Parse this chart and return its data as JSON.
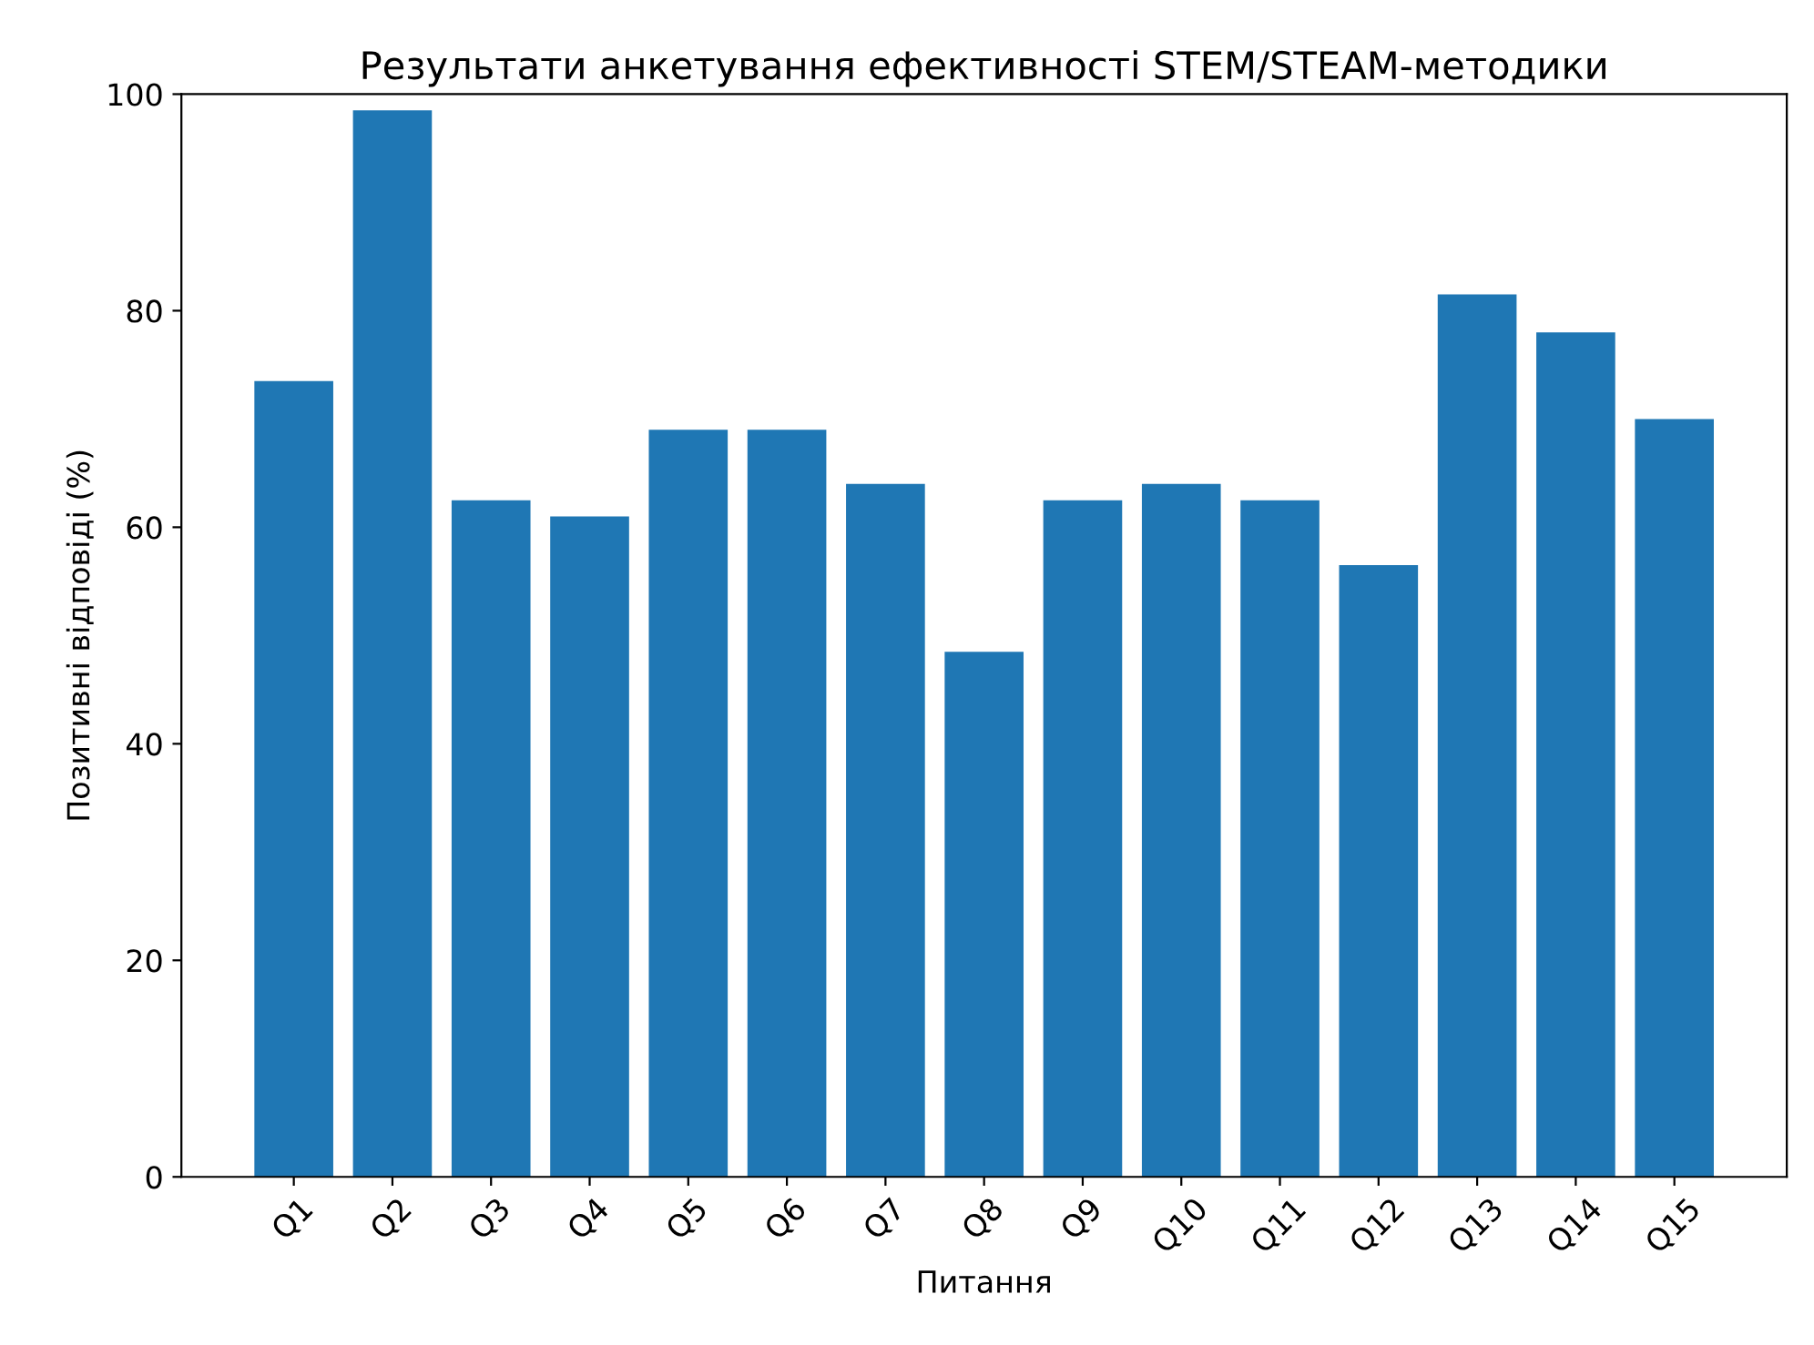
{
  "chart_data": {
    "type": "bar",
    "title": "Результати анкетування ефективності STEM/STEAM-методики",
    "xlabel": "Питання",
    "ylabel": "Позитивні відповіді (%)",
    "categories": [
      "Q1",
      "Q2",
      "Q3",
      "Q4",
      "Q5",
      "Q6",
      "Q7",
      "Q8",
      "Q9",
      "Q10",
      "Q11",
      "Q12",
      "Q13",
      "Q14",
      "Q15"
    ],
    "values": [
      73.5,
      98.5,
      62.5,
      61,
      69,
      69,
      64,
      48.5,
      62.5,
      64,
      62.5,
      56.5,
      81.5,
      78,
      70
    ],
    "color": "#1f77b4",
    "ylim": [
      0,
      100
    ],
    "yticks": [
      0,
      20,
      40,
      60,
      80,
      100
    ],
    "grid": false
  }
}
